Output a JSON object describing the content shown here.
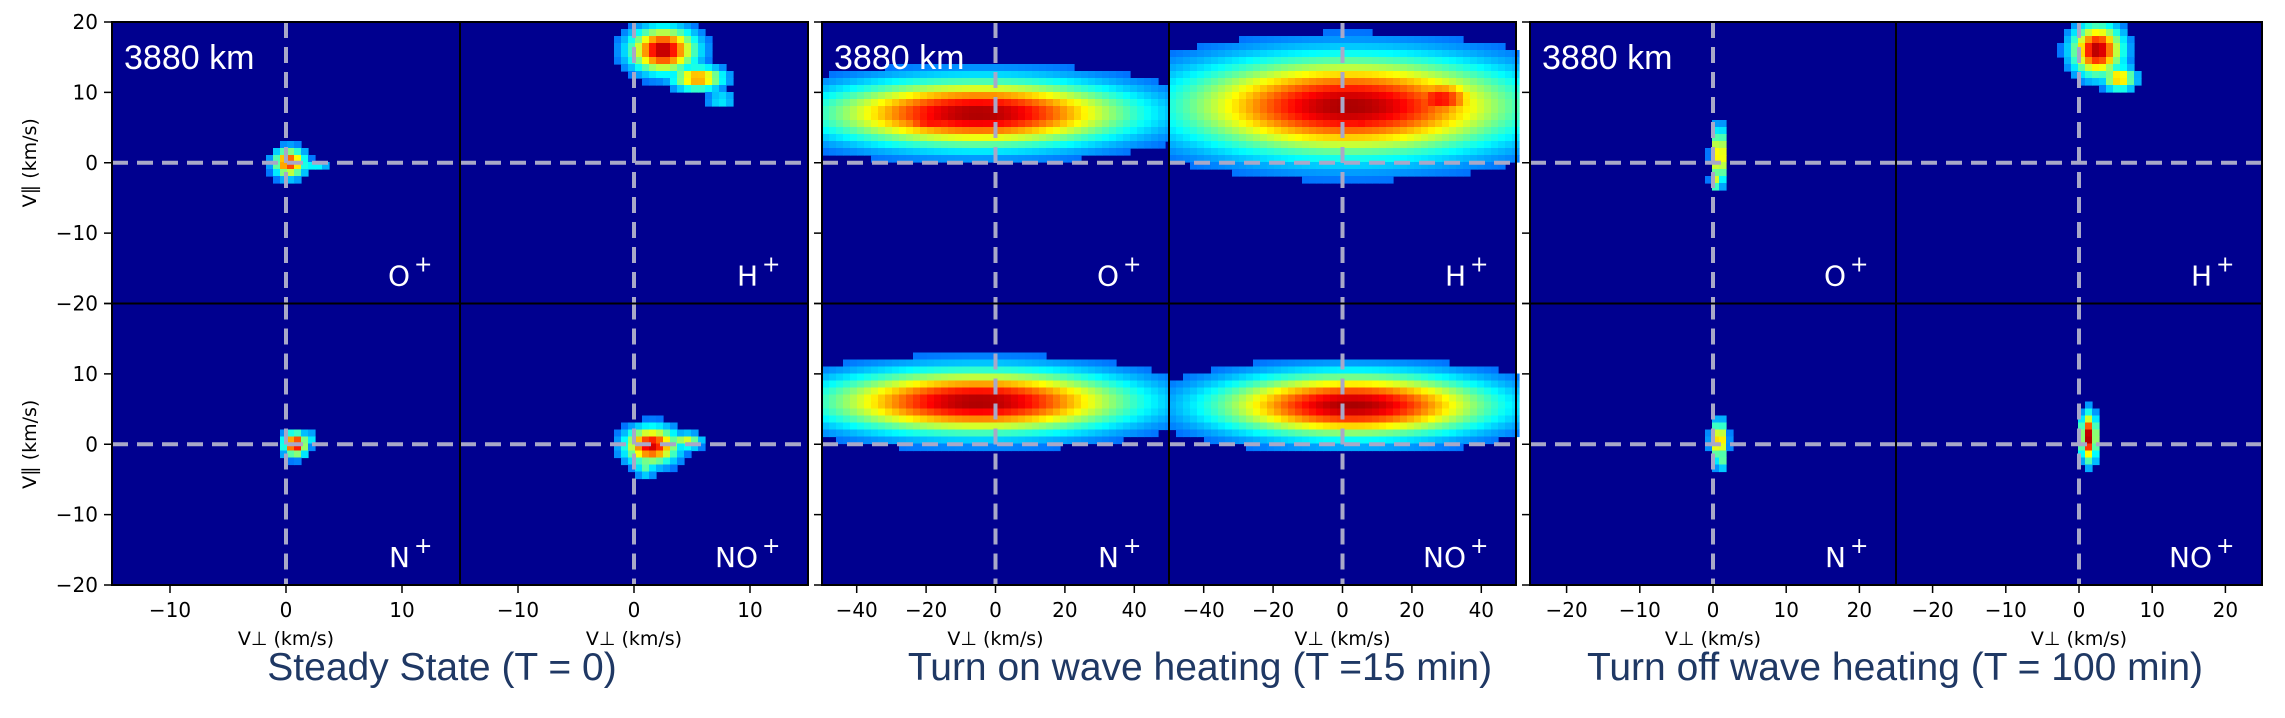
{
  "chart_data": [
    {
      "type": "heatmap",
      "title": "Steady State (T = 0)",
      "altitude_label": "3880 km",
      "xlabel": "V⊥ (km/s)",
      "ylabel": "V∥ (km/s)",
      "xlim": [
        -15,
        15
      ],
      "ylim": [
        -20,
        20
      ],
      "xticks": [
        -10,
        0,
        10
      ],
      "yticks": [
        -20,
        -10,
        0,
        10,
        20
      ],
      "reference_lines": {
        "x": 0,
        "y": 0,
        "style": "dashed"
      },
      "panels": [
        {
          "species": "O",
          "charge": "+",
          "blobs": [
            {
              "cx": 0.3,
              "cy": 0,
              "rx": 1.2,
              "ry": 1.8,
              "peak": 0.8
            },
            {
              "cx": 2.5,
              "cy": -0.5,
              "rx": 1.2,
              "ry": 0.7,
              "peak": 0.25
            }
          ]
        },
        {
          "species": "H",
          "charge": "+",
          "blobs": [
            {
              "cx": 2.5,
              "cy": 16,
              "rx": 2.5,
              "ry": 2.8,
              "peak": 0.95
            },
            {
              "cx": 5.5,
              "cy": 12,
              "rx": 2,
              "ry": 1.5,
              "peak": 0.7
            },
            {
              "cx": 7.5,
              "cy": 9,
              "rx": 1.2,
              "ry": 1,
              "peak": 0.25
            }
          ]
        },
        {
          "species": "N",
          "charge": "+",
          "blobs": [
            {
              "cx": 0.8,
              "cy": 0,
              "rx": 0.9,
              "ry": 1.5,
              "peak": 0.9
            },
            {
              "cx": 2,
              "cy": 1,
              "rx": 0.6,
              "ry": 0.6,
              "peak": 0.35
            }
          ]
        },
        {
          "species": "NO",
          "charge": "+",
          "blobs": [
            {
              "cx": 1.5,
              "cy": -0.2,
              "rx": 2,
              "ry": 2.3,
              "peak": 0.9
            },
            {
              "cx": 4.5,
              "cy": 0.5,
              "rx": 1.2,
              "ry": 1,
              "peak": 0.5
            },
            {
              "cx": 1,
              "cy": -3.5,
              "rx": 0.8,
              "ry": 1,
              "peak": 0.35
            }
          ]
        }
      ]
    },
    {
      "type": "heatmap",
      "title": "Turn on wave heating (T =15 min)",
      "altitude_label": "3880 km",
      "xlabel": "V⊥ (km/s)",
      "ylabel": "V∥ (km/s)",
      "xlim": [
        -50,
        50
      ],
      "ylim": [
        -20,
        20
      ],
      "xticks": [
        -40,
        -20,
        0,
        20,
        40
      ],
      "yticks": [
        -20,
        -10,
        0,
        10,
        20
      ],
      "reference_lines": {
        "x": 0,
        "y": 0,
        "style": "dashed"
      },
      "panels": [
        {
          "species": "O",
          "charge": "+",
          "blobs": [
            {
              "cx": -5,
              "cy": 7,
              "rx": 40,
              "ry": 4.2,
              "peak": 0.95
            },
            {
              "cx": -18,
              "cy": 6,
              "rx": 14,
              "ry": 2.5,
              "peak": 0.85
            }
          ]
        },
        {
          "species": "H",
          "charge": "+",
          "blobs": [
            {
              "cx": 2,
              "cy": 8,
              "rx": 44,
              "ry": 6.2,
              "peak": 0.95
            },
            {
              "cx": 28,
              "cy": 9,
              "rx": 12,
              "ry": 3,
              "peak": 0.85
            },
            {
              "cx": 5,
              "cy": 6,
              "rx": 14,
              "ry": 3,
              "peak": 0.85
            }
          ]
        },
        {
          "species": "N",
          "charge": "+",
          "blobs": [
            {
              "cx": -5,
              "cy": 6,
              "rx": 40,
              "ry": 4,
              "peak": 0.95
            },
            {
              "cx": -10,
              "cy": 5.5,
              "rx": 16,
              "ry": 2.5,
              "peak": 0.8
            }
          ]
        },
        {
          "species": "NO",
          "charge": "+",
          "blobs": [
            {
              "cx": 3,
              "cy": 5.5,
              "rx": 36,
              "ry": 4,
              "peak": 0.95
            },
            {
              "cx": 5,
              "cy": 5,
              "rx": 14,
              "ry": 2,
              "peak": 0.8
            }
          ]
        }
      ]
    },
    {
      "type": "heatmap",
      "title": "Turn off wave heating (T = 100 min)",
      "altitude_label": "3880 km",
      "xlabel": "V⊥ (km/s)",
      "ylabel": "V∥ (km/s)",
      "xlim": [
        -25,
        25
      ],
      "ylim": [
        -20,
        20
      ],
      "xticks": [
        -20,
        -10,
        0,
        10,
        20
      ],
      "yticks": [
        -20,
        -10,
        0,
        10,
        20
      ],
      "reference_lines": {
        "x": 0,
        "y": 0,
        "style": "dashed"
      },
      "panels": [
        {
          "species": "O",
          "charge": "+",
          "blobs": [
            {
              "cx": 0.8,
              "cy": 1,
              "rx": 0.9,
              "ry": 3.5,
              "peak": 0.7
            },
            {
              "cx": 0.4,
              "cy": -2.5,
              "rx": 0.7,
              "ry": 1.2,
              "peak": 0.5
            }
          ]
        },
        {
          "species": "H",
          "charge": "+",
          "blobs": [
            {
              "cx": 2.5,
              "cy": 16,
              "rx": 3,
              "ry": 3.2,
              "peak": 0.95
            },
            {
              "cx": 5.5,
              "cy": 12,
              "rx": 2,
              "ry": 1.5,
              "peak": 0.65
            }
          ]
        },
        {
          "species": "N",
          "charge": "+",
          "blobs": [
            {
              "cx": 0.8,
              "cy": 0.5,
              "rx": 1,
              "ry": 2.5,
              "peak": 0.7
            },
            {
              "cx": 1,
              "cy": -2.5,
              "rx": 0.8,
              "ry": 1,
              "peak": 0.4
            }
          ]
        },
        {
          "species": "NO",
          "charge": "+",
          "blobs": [
            {
              "cx": 1.3,
              "cy": 1,
              "rx": 1,
              "ry": 3,
              "peak": 0.95
            },
            {
              "cx": 1.5,
              "cy": -2,
              "rx": 0.8,
              "ry": 1,
              "peak": 0.4
            }
          ]
        }
      ]
    }
  ],
  "colors": {
    "background": "#00008f",
    "guide_line": "#a8a8c8",
    "title_text": "#1f3864",
    "colormap": "jet"
  }
}
